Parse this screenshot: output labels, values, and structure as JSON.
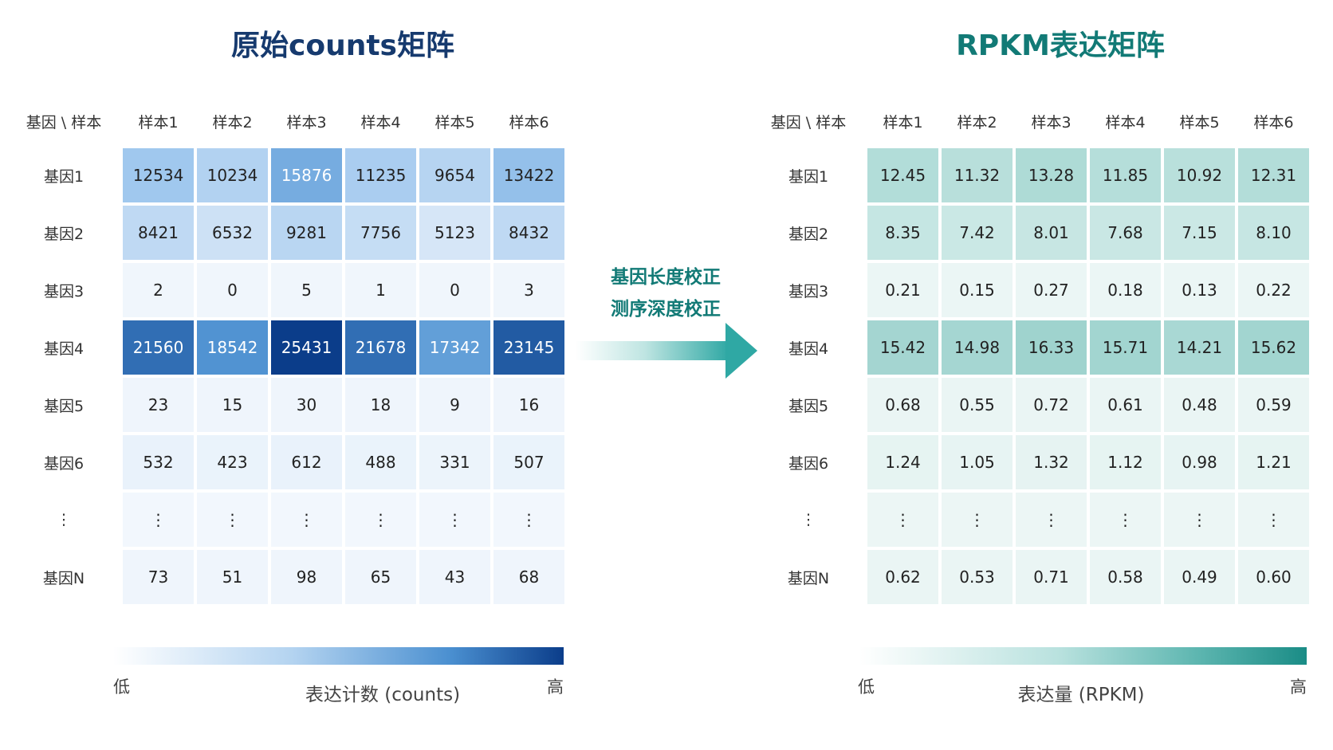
{
  "left": {
    "title": "原始counts矩阵",
    "corner": "基因 \\ 样本",
    "columns": [
      "样本1",
      "样本2",
      "样本3",
      "样本4",
      "样本5",
      "样本6"
    ],
    "rows": [
      {
        "label": "基因1",
        "values": [
          "12534",
          "10234",
          "15876",
          "11235",
          "9654",
          "13422"
        ],
        "levels": [
          0.49,
          0.4,
          0.62,
          0.44,
          0.38,
          0.53
        ]
      },
      {
        "label": "基因2",
        "values": [
          "8421",
          "6532",
          "9281",
          "7756",
          "5123",
          "8432"
        ],
        "levels": [
          0.33,
          0.26,
          0.36,
          0.3,
          0.2,
          0.33
        ]
      },
      {
        "label": "基因3",
        "values": [
          "2",
          "0",
          "5",
          "1",
          "0",
          "3"
        ],
        "levels": [
          0.02,
          0.02,
          0.02,
          0.02,
          0.02,
          0.02
        ]
      },
      {
        "label": "基因4",
        "values": [
          "21560",
          "18542",
          "25431",
          "21678",
          "17342",
          "23145"
        ],
        "levels": [
          0.85,
          0.73,
          1.0,
          0.85,
          0.68,
          0.91
        ]
      },
      {
        "label": "基因5",
        "values": [
          "23",
          "15",
          "30",
          "18",
          "9",
          "16"
        ],
        "levels": [
          0.03,
          0.03,
          0.03,
          0.03,
          0.03,
          0.03
        ]
      },
      {
        "label": "基因6",
        "values": [
          "532",
          "423",
          "612",
          "488",
          "331",
          "507"
        ],
        "levels": [
          0.07,
          0.06,
          0.07,
          0.06,
          0.05,
          0.06
        ]
      },
      {
        "label": "⋮",
        "values": [
          "⋮",
          "⋮",
          "⋮",
          "⋮",
          "⋮",
          "⋮"
        ],
        "levels": [
          0.01,
          0.01,
          0.01,
          0.01,
          0.01,
          0.01
        ]
      },
      {
        "label": "基因N",
        "values": [
          "73",
          "51",
          "98",
          "65",
          "43",
          "68"
        ],
        "levels": [
          0.03,
          0.03,
          0.03,
          0.03,
          0.03,
          0.03
        ]
      }
    ],
    "colorbar": {
      "low": "低",
      "high": "高",
      "label": "表达计数 (counts)"
    },
    "palette": [
      "#f3f8fd",
      "#cfe2f5",
      "#9ec7ee",
      "#4a8fd0",
      "#0b3d8a"
    ]
  },
  "right": {
    "title": "RPKM表达矩阵",
    "corner": "基因 \\ 样本",
    "columns": [
      "样本1",
      "样本2",
      "样本3",
      "样本4",
      "样本5",
      "样本6"
    ],
    "rows": [
      {
        "label": "基因1",
        "values": [
          "12.45",
          "11.32",
          "13.28",
          "11.85",
          "10.92",
          "12.31"
        ],
        "levels": [
          0.76,
          0.69,
          0.81,
          0.73,
          0.67,
          0.75
        ]
      },
      {
        "label": "基因2",
        "values": [
          "8.35",
          "7.42",
          "8.01",
          "7.68",
          "7.15",
          "8.10"
        ],
        "levels": [
          0.51,
          0.45,
          0.49,
          0.47,
          0.44,
          0.5
        ]
      },
      {
        "label": "基因3",
        "values": [
          "0.21",
          "0.15",
          "0.27",
          "0.18",
          "0.13",
          "0.22"
        ],
        "levels": [
          0.06,
          0.06,
          0.06,
          0.06,
          0.06,
          0.06
        ]
      },
      {
        "label": "基因4",
        "values": [
          "15.42",
          "14.98",
          "16.33",
          "15.71",
          "14.21",
          "15.62"
        ],
        "levels": [
          0.94,
          0.92,
          1.0,
          0.96,
          0.87,
          0.96
        ]
      },
      {
        "label": "基因5",
        "values": [
          "0.68",
          "0.55",
          "0.72",
          "0.61",
          "0.48",
          "0.59"
        ],
        "levels": [
          0.08,
          0.07,
          0.08,
          0.08,
          0.07,
          0.08
        ]
      },
      {
        "label": "基因6",
        "values": [
          "1.24",
          "1.05",
          "1.32",
          "1.12",
          "0.98",
          "1.21"
        ],
        "levels": [
          0.12,
          0.11,
          0.13,
          0.12,
          0.11,
          0.12
        ]
      },
      {
        "label": "⋮",
        "values": [
          "⋮",
          "⋮",
          "⋮",
          "⋮",
          "⋮",
          "⋮"
        ],
        "levels": [
          0.05,
          0.05,
          0.05,
          0.05,
          0.05,
          0.05
        ]
      },
      {
        "label": "基因N",
        "values": [
          "0.62",
          "0.53",
          "0.71",
          "0.58",
          "0.49",
          "0.60"
        ],
        "levels": [
          0.08,
          0.08,
          0.08,
          0.08,
          0.08,
          0.08
        ]
      }
    ],
    "colorbar": {
      "low": "低",
      "high": "高",
      "label": "表达量 (RPKM)"
    },
    "palette": [
      "#f0f8f7",
      "#dcefed",
      "#c6e6e3",
      "#b3ddd9",
      "#9fd3ce"
    ]
  },
  "arrow": {
    "line1": "基因长度校正",
    "line2": "测序深度校正",
    "color": "#2fa8a4"
  }
}
